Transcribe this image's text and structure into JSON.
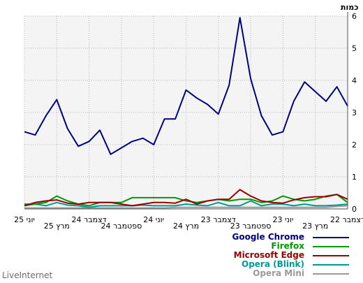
{
  "chart_data": {
    "type": "line",
    "ylabel": "כמות",
    "ylim": [
      0,
      6
    ],
    "yticks": [
      "0",
      "1",
      "2",
      "3",
      "4",
      "5",
      "6"
    ],
    "xticks_row1": [
      "יוני 25",
      "דצמבר 24",
      "יוני 24",
      "דצמבר 23",
      "יוני 23",
      "דצמבר 22"
    ],
    "xticks_row2": [
      "מרץ 25",
      "ספטמבר 24",
      "מרץ 24",
      "ספטמבר 23",
      "מרץ 23"
    ],
    "grid": true,
    "legend_position": "bottom-right",
    "series": [
      {
        "name": "Google Chrome",
        "color": "#000080",
        "values": [
          3.2,
          3.8,
          3.35,
          3.65,
          3.95,
          3.35,
          2.4,
          2.3,
          2.9,
          4.05,
          5.95,
          3.85,
          2.95,
          3.25,
          3.45,
          3.7,
          2.8,
          2.8,
          2.0,
          2.2,
          2.1,
          1.9,
          1.7,
          2.45,
          2.1,
          1.95,
          2.5,
          3.4,
          2.9,
          2.3,
          2.4
        ]
      },
      {
        "name": "Firefox",
        "color": "#009900",
        "values": [
          0.2,
          0.45,
          0.4,
          0.3,
          0.25,
          0.3,
          0.4,
          0.25,
          0.2,
          0.3,
          0.3,
          0.25,
          0.3,
          0.25,
          0.2,
          0.25,
          0.35,
          0.35,
          0.35,
          0.35,
          0.35,
          0.2,
          0.2,
          0.2,
          0.1,
          0.15,
          0.25,
          0.4,
          0.2,
          0.15,
          0.15
        ]
      },
      {
        "name": "Microsoft Edge",
        "color": "#990000",
        "values": [
          0.3,
          0.45,
          0.38,
          0.38,
          0.35,
          0.28,
          0.18,
          0.2,
          0.25,
          0.4,
          0.6,
          0.3,
          0.3,
          0.25,
          0.15,
          0.3,
          0.18,
          0.2,
          0.2,
          0.15,
          0.1,
          0.15,
          0.2,
          0.2,
          0.2,
          0.15,
          0.18,
          0.28,
          0.25,
          0.2,
          0.1
        ]
      },
      {
        "name": "Opera (Blink)",
        "color": "#009999",
        "values": [
          0.15,
          0.12,
          0.1,
          0.1,
          0.15,
          0.1,
          0.15,
          0.15,
          0.1,
          0.25,
          0.1,
          0.1,
          0.2,
          0.1,
          0.12,
          0.15,
          0.1,
          0.1,
          0.1,
          0.12,
          0.1,
          0.1,
          0.1,
          0.1,
          0.05,
          0.1,
          0.12,
          0.2,
          0.1,
          0.15,
          0.1
        ]
      },
      {
        "name": "Opera Mini",
        "color": "#999999",
        "values": [
          0.1,
          0.08,
          0.05,
          0.05,
          0.05,
          0.05,
          0.05,
          0.05,
          0.05,
          0.05,
          0.05,
          0.05,
          0.05,
          0.05,
          0.05,
          0.05,
          0.05,
          0.03,
          0.03,
          0.03,
          0.03,
          0.03,
          0.03,
          0.03,
          0.03,
          0.03,
          0.03,
          0.03,
          0.03,
          0.03,
          0.03
        ]
      }
    ]
  },
  "branding": {
    "text": "LiveInternet"
  }
}
